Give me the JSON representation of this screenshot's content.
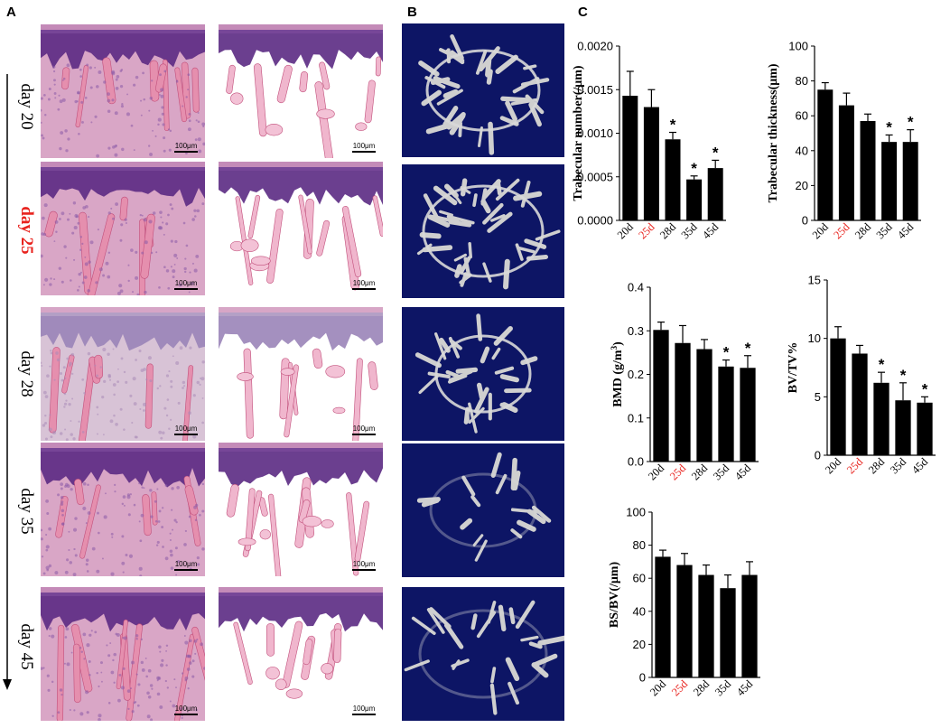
{
  "panels": {
    "a": "A",
    "b": "B",
    "c": "C"
  },
  "days": [
    {
      "label": "day 20",
      "highlight": false
    },
    {
      "label": "day 25",
      "highlight": true
    },
    {
      "label": "day 28",
      "highlight": false
    },
    {
      "label": "day 35",
      "highlight": false
    },
    {
      "label": "day 45",
      "highlight": false
    }
  ],
  "scale_label": "100μm",
  "colors": {
    "highlight": "#e8231e",
    "ct_background": "#0d1565",
    "bar": "#000000"
  },
  "chart_data": [
    {
      "type": "bar",
      "ylabel": "Trabecular number(/μm)",
      "categories": [
        "20d",
        "25d",
        "28d",
        "35d",
        "45d"
      ],
      "highlight_category": "25d",
      "values": [
        0.00143,
        0.0013,
        0.00093,
        0.00047,
        0.0006
      ],
      "errors": [
        0.00028,
        0.0002,
        8e-05,
        4e-05,
        9e-05
      ],
      "significant": [
        false,
        false,
        true,
        true,
        true
      ],
      "ylim": [
        0,
        0.002
      ],
      "yticks": [
        "0.0000",
        "0.0005",
        "0.0010",
        "0.0015",
        "0.0020"
      ]
    },
    {
      "type": "bar",
      "ylabel": "Trabecular  thickness(μm)",
      "categories": [
        "20d",
        "25d",
        "28d",
        "35d",
        "45d"
      ],
      "highlight_category": "25d",
      "values": [
        75,
        66,
        57,
        45,
        45
      ],
      "errors": [
        4,
        7,
        4,
        4,
        7
      ],
      "significant": [
        false,
        false,
        false,
        true,
        true
      ],
      "ylim": [
        0,
        100
      ],
      "yticks": [
        "0",
        "20",
        "40",
        "60",
        "80",
        "100"
      ]
    },
    {
      "type": "bar",
      "ylabel": "BMD (g/m3)",
      "categories": [
        "20d",
        "25d",
        "28d",
        "35d",
        "45d"
      ],
      "highlight_category": "25d",
      "values": [
        0.302,
        0.272,
        0.258,
        0.218,
        0.215
      ],
      "errors": [
        0.018,
        0.04,
        0.022,
        0.015,
        0.028
      ],
      "significant": [
        false,
        false,
        false,
        true,
        true
      ],
      "ylim": [
        0,
        0.4
      ],
      "yticks": [
        "0.0",
        "0.1",
        "0.2",
        "0.3",
        "0.4"
      ]
    },
    {
      "type": "bar",
      "ylabel": "BV/TV%",
      "categories": [
        "20d",
        "25d",
        "28d",
        "35d",
        "45d"
      ],
      "highlight_category": "25d",
      "values": [
        10.0,
        8.7,
        6.2,
        4.7,
        4.5
      ],
      "errors": [
        1.0,
        0.7,
        0.9,
        1.5,
        0.5
      ],
      "significant": [
        false,
        false,
        true,
        true,
        true
      ],
      "ylim": [
        0,
        15
      ],
      "yticks": [
        "0",
        "5",
        "10",
        "15"
      ]
    },
    {
      "type": "bar",
      "ylabel": "BS/BV(/μm)",
      "categories": [
        "20d",
        "25d",
        "28d",
        "35d",
        "45d"
      ],
      "highlight_category": "25d",
      "values": [
        73,
        68,
        62,
        54,
        62
      ],
      "errors": [
        4,
        7,
        6,
        8,
        8
      ],
      "significant": [
        false,
        false,
        false,
        false,
        false
      ],
      "ylim": [
        0,
        100
      ],
      "yticks": [
        "0",
        "20",
        "40",
        "60",
        "80",
        "100"
      ]
    }
  ]
}
